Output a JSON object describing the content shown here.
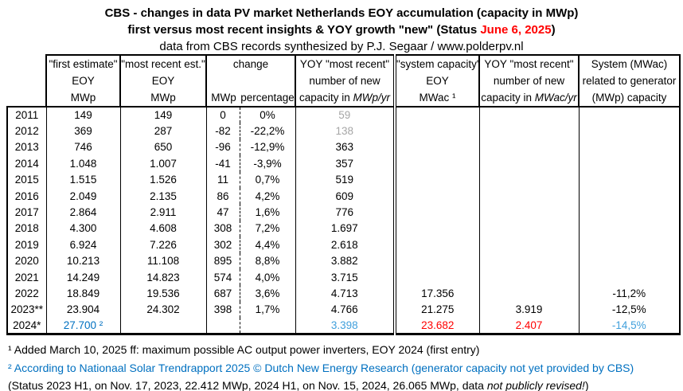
{
  "title": {
    "line1": "CBS - changes in data PV market Netherlands EOY accumulation (capacity in MWp)",
    "line2_prefix": "first versus most recent insights & YOY growth \"new\" (Status ",
    "line2_date": "June 6, 2025",
    "line2_suffix": ")",
    "line3": "data from CBS records synthesized by P.J. Segaar / www.polderpv.nl"
  },
  "colors": {
    "accent_red": "#FF0000",
    "accent_blue": "#0070C0",
    "accent_lightblue": "#41A0DC",
    "muted_grey": "#A6A6A6"
  },
  "table": {
    "headers": {
      "first": [
        "\"first estimate\"",
        "EOY",
        "MWp"
      ],
      "recent": [
        "\"most recent est.\"",
        "EOY",
        "MWp"
      ],
      "change": "change",
      "change_mwp": "MWp",
      "change_pct": "percentage",
      "yoy": {
        "line1": "YOY \"most recent\"",
        "line2": "number  of new",
        "line3_prefix": "capacity in ",
        "line3_unit": "MWp/yr"
      },
      "sys": [
        "\"system capacity\"",
        "EOY",
        "MWac ¹"
      ],
      "yoyac": {
        "line1": "YOY \"most recent\"",
        "line2": "number of new",
        "line3_prefix": "capacity in ",
        "line3_unit": "MWac/yr"
      },
      "ratio": [
        "System (MWac)",
        "related to generator",
        "(MWp) capacity"
      ]
    },
    "rows": [
      {
        "year": "2011",
        "first": "149",
        "recent": "149",
        "chg": "0",
        "pct": "0%",
        "yoy": "59",
        "sys": "",
        "yoyac": "",
        "ratio": "",
        "styles": {
          "yoy": "grey"
        }
      },
      {
        "year": "2012",
        "first": "369",
        "recent": "287",
        "chg": "-82",
        "pct": "-22,2%",
        "yoy": "138",
        "sys": "",
        "yoyac": "",
        "ratio": "",
        "styles": {
          "yoy": "grey"
        }
      },
      {
        "year": "2013",
        "first": "746",
        "recent": "650",
        "chg": "-96",
        "pct": "-12,9%",
        "yoy": "363",
        "sys": "",
        "yoyac": "",
        "ratio": "",
        "styles": {}
      },
      {
        "year": "2014",
        "first": "1.048",
        "recent": "1.007",
        "chg": "-41",
        "pct": "-3,9%",
        "yoy": "357",
        "sys": "",
        "yoyac": "",
        "ratio": "",
        "styles": {}
      },
      {
        "year": "2015",
        "first": "1.515",
        "recent": "1.526",
        "chg": "11",
        "pct": "0,7%",
        "yoy": "519",
        "sys": "",
        "yoyac": "",
        "ratio": "",
        "styles": {}
      },
      {
        "year": "2016",
        "first": "2.049",
        "recent": "2.135",
        "chg": "86",
        "pct": "4,2%",
        "yoy": "609",
        "sys": "",
        "yoyac": "",
        "ratio": "",
        "styles": {}
      },
      {
        "year": "2017",
        "first": "2.864",
        "recent": "2.911",
        "chg": "47",
        "pct": "1,6%",
        "yoy": "776",
        "sys": "",
        "yoyac": "",
        "ratio": "",
        "styles": {}
      },
      {
        "year": "2018",
        "first": "4.300",
        "recent": "4.608",
        "chg": "308",
        "pct": "7,2%",
        "yoy": "1.697",
        "sys": "",
        "yoyac": "",
        "ratio": "",
        "styles": {}
      },
      {
        "year": "2019",
        "first": "6.924",
        "recent": "7.226",
        "chg": "302",
        "pct": "4,4%",
        "yoy": "2.618",
        "sys": "",
        "yoyac": "",
        "ratio": "",
        "styles": {}
      },
      {
        "year": "2020",
        "first": "10.213",
        "recent": "11.108",
        "chg": "895",
        "pct": "8,8%",
        "yoy": "3.882",
        "sys": "",
        "yoyac": "",
        "ratio": "",
        "styles": {}
      },
      {
        "year": "2021",
        "first": "14.249",
        "recent": "14.823",
        "chg": "574",
        "pct": "4,0%",
        "yoy": "3.715",
        "sys": "",
        "yoyac": "",
        "ratio": "",
        "styles": {}
      },
      {
        "year": "2022",
        "first": "18.849",
        "recent": "19.536",
        "chg": "687",
        "pct": "3,6%",
        "yoy": "4.713",
        "sys": "17.356",
        "yoyac": "",
        "ratio": "-11,2%",
        "styles": {}
      },
      {
        "year": "2023**",
        "first": "23.904",
        "recent": "24.302",
        "chg": "398",
        "pct": "1,7%",
        "yoy": "4.766",
        "sys": "21.275",
        "yoyac": "3.919",
        "ratio": "-12,5%",
        "styles": {}
      },
      {
        "year": "2024*",
        "first": "27.700 ²",
        "recent": "",
        "chg": "",
        "pct": "",
        "yoy": "3.398",
        "sys": "23.682",
        "yoyac": "2.407",
        "ratio": "-14,5%",
        "styles": {
          "first": "blue",
          "yoy": "lightblue",
          "sys": "red",
          "yoyac": "red",
          "ratio": "lightblue"
        }
      }
    ]
  },
  "footnotes": {
    "line1": "¹ Added March 10, 2025 ff: maximum possible AC output power inverters, EOY 2024 (first entry)",
    "line2": "² According to Nationaal Solar Trendrapport 2025 © Dutch New Energy Research (generator capacity not yet provided by CBS)",
    "line3_prefix": "(Status 2023 H1, on Nov. 17, 2023, 22.412 MWp,  2024 H1, on Nov. 15, 2024, 26.065 MWp, data ",
    "line3_italic": "not publicly revised!",
    "line3_suffix": ")"
  }
}
